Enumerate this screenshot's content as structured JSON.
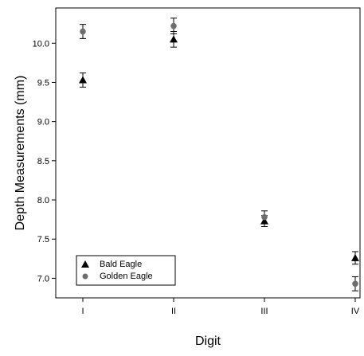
{
  "chart_data": {
    "type": "scatter",
    "title": "",
    "xlabel": "Digit",
    "ylabel": "Depth Measurements (mm)",
    "categories": [
      "I",
      "II",
      "III",
      "IV"
    ],
    "ylim": [
      6.75,
      10.45
    ],
    "yticks": [
      7.0,
      7.5,
      8.0,
      8.5,
      9.0,
      9.5,
      10.0
    ],
    "ytick_labels": [
      "7.0",
      "7.5",
      "8.0",
      "8.5",
      "9.0",
      "9.5",
      "10.0"
    ],
    "grid": false,
    "legend_position": "bottom-left",
    "series": [
      {
        "name": "Bald Eagle",
        "marker": "triangle",
        "color": "#000000",
        "values": [
          9.53,
          10.05,
          7.73,
          7.26
        ],
        "errors": [
          0.09,
          0.1,
          0.07,
          0.08
        ]
      },
      {
        "name": "Golden Eagle",
        "marker": "circle",
        "color": "#6e6e6e",
        "values": [
          10.15,
          10.22,
          7.78,
          6.93
        ],
        "errors": [
          0.09,
          0.1,
          0.08,
          0.09
        ]
      }
    ]
  }
}
